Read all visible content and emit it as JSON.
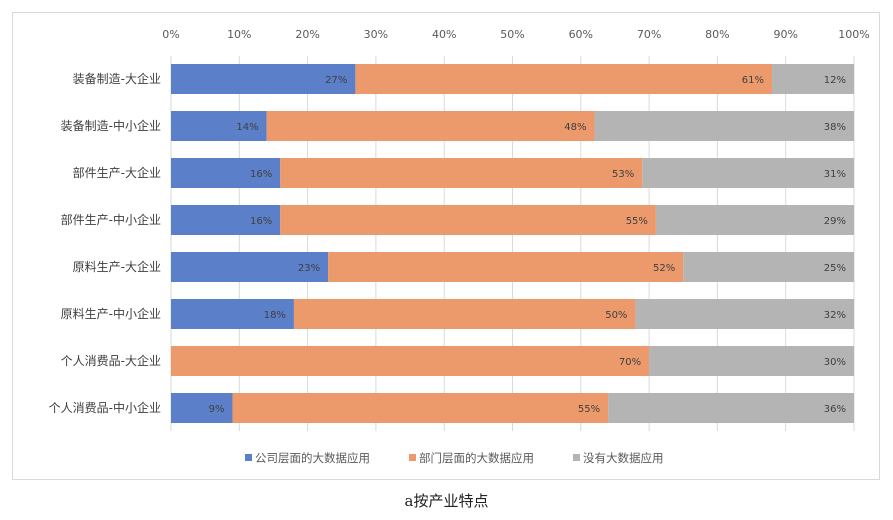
{
  "chart_data": {
    "type": "bar",
    "orientation": "horizontal",
    "stacked": "percent",
    "categories": [
      "装备制造-大企业",
      "装备制造-中小企业",
      "部件生产-大企业",
      "部件生产-中小企业",
      "原料生产-大企业",
      "原料生产-中小企业",
      "个人消费品-大企业",
      "个人消费品-中小企业"
    ],
    "series": [
      {
        "name": "公司层面的大数据应用",
        "color": "#5b7fc9",
        "values": [
          27,
          14,
          16,
          16,
          23,
          18,
          0,
          9
        ],
        "labels": [
          "27%",
          "14%",
          "16%",
          "16%",
          "23%",
          "18%",
          "",
          "9%"
        ]
      },
      {
        "name": "部门层面的大数据应用",
        "color": "#ec9a6c",
        "values": [
          61,
          48,
          53,
          55,
          52,
          50,
          70,
          55
        ],
        "labels": [
          "61%",
          "48%",
          "53%",
          "55%",
          "52%",
          "50%",
          "70%",
          "55%"
        ]
      },
      {
        "name": "没有大数据应用",
        "color": "#b4b4b4",
        "values": [
          12,
          38,
          31,
          29,
          25,
          32,
          30,
          36
        ],
        "labels": [
          "12%",
          "38%",
          "31%",
          "29%",
          "25%",
          "32%",
          "30%",
          "36%"
        ]
      }
    ],
    "xlim": [
      0,
      100
    ],
    "x_ticks": [
      "0%",
      "10%",
      "20%",
      "30%",
      "40%",
      "50%",
      "60%",
      "70%",
      "80%",
      "90%",
      "100%"
    ],
    "x_axis_position": "top",
    "grid": true,
    "legend_position": "bottom",
    "title": "",
    "xlabel": "",
    "ylabel": ""
  },
  "caption": "a按产业特点"
}
